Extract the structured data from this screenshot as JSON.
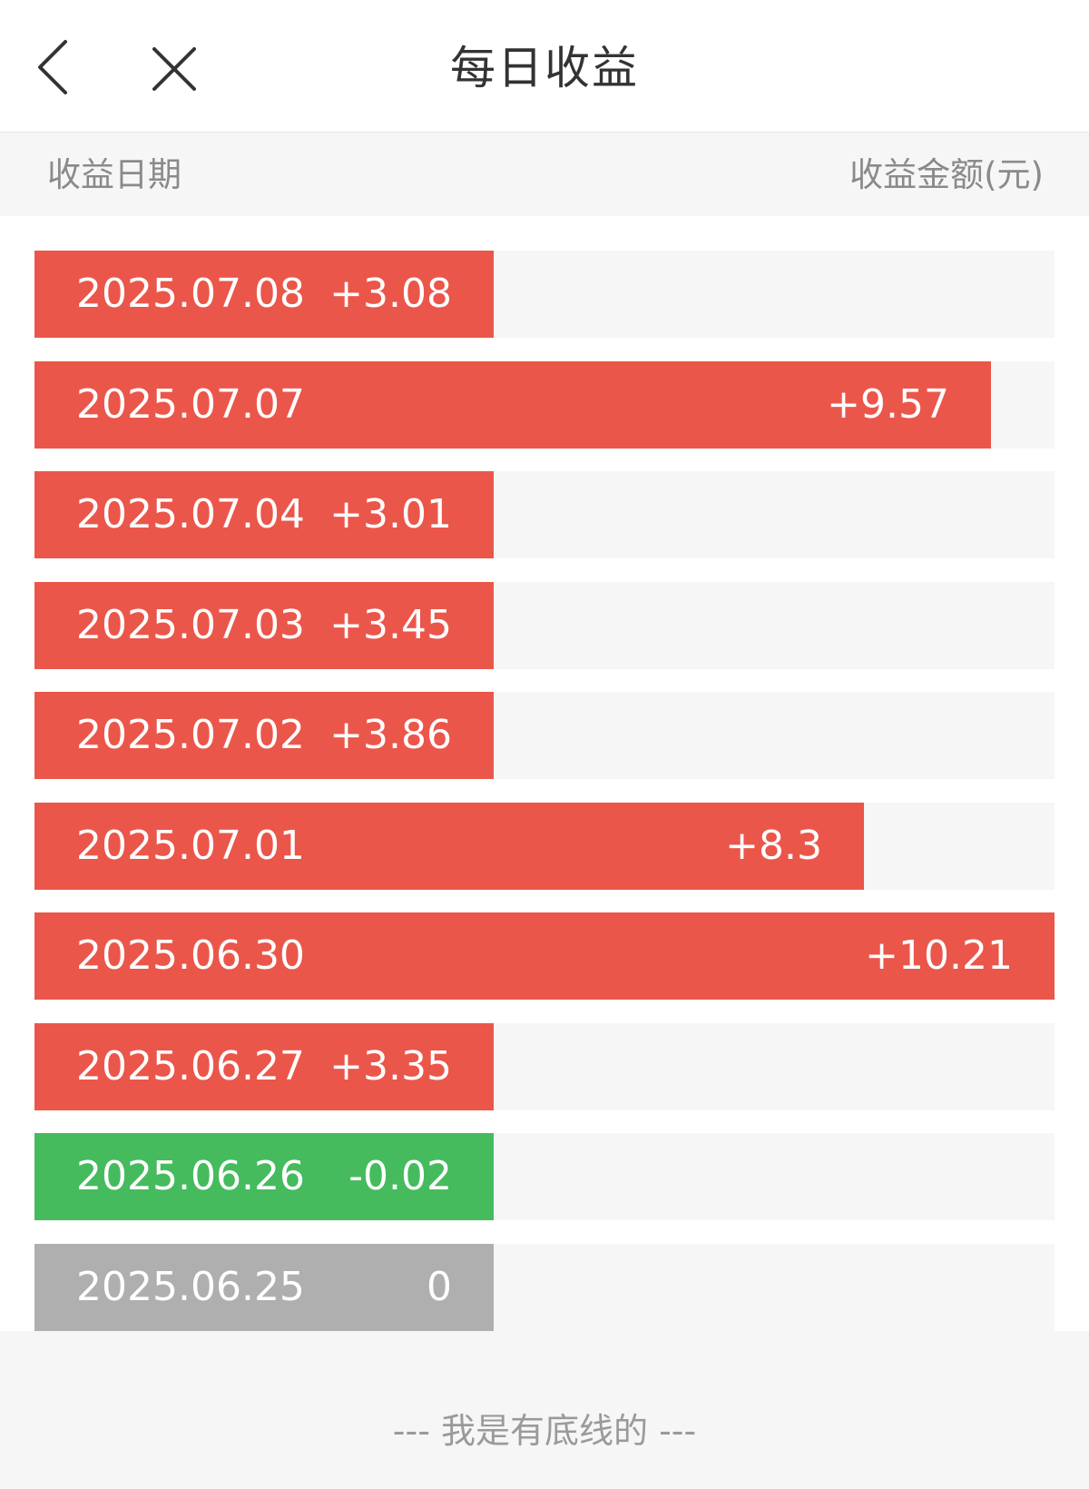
{
  "header": {
    "title": "每日收益",
    "back_icon": "chevron-left-icon",
    "close_icon": "close-icon"
  },
  "columns": {
    "date_label": "收益日期",
    "amount_label": "收益金额(元)"
  },
  "colors": {
    "positive": "#eb564a",
    "negative": "#45bb5e",
    "zero": "#afafaf",
    "track": "#f6f6f6"
  },
  "max_value": 10.21,
  "rows": [
    {
      "date": "2025.07.08",
      "value_text": "+3.08",
      "value": 3.08
    },
    {
      "date": "2025.07.07",
      "value_text": "+9.57",
      "value": 9.57
    },
    {
      "date": "2025.07.04",
      "value_text": "+3.01",
      "value": 3.01
    },
    {
      "date": "2025.07.03",
      "value_text": "+3.45",
      "value": 3.45
    },
    {
      "date": "2025.07.02",
      "value_text": "+3.86",
      "value": 3.86
    },
    {
      "date": "2025.07.01",
      "value_text": "+8.3",
      "value": 8.3
    },
    {
      "date": "2025.06.30",
      "value_text": "+10.21",
      "value": 10.21
    },
    {
      "date": "2025.06.27",
      "value_text": "+3.35",
      "value": 3.35
    },
    {
      "date": "2025.06.26",
      "value_text": "-0.02",
      "value": -0.02
    },
    {
      "date": "2025.06.25",
      "value_text": "0",
      "value": 0
    }
  ],
  "footer": {
    "text": "--- 我是有底线的 ---"
  }
}
